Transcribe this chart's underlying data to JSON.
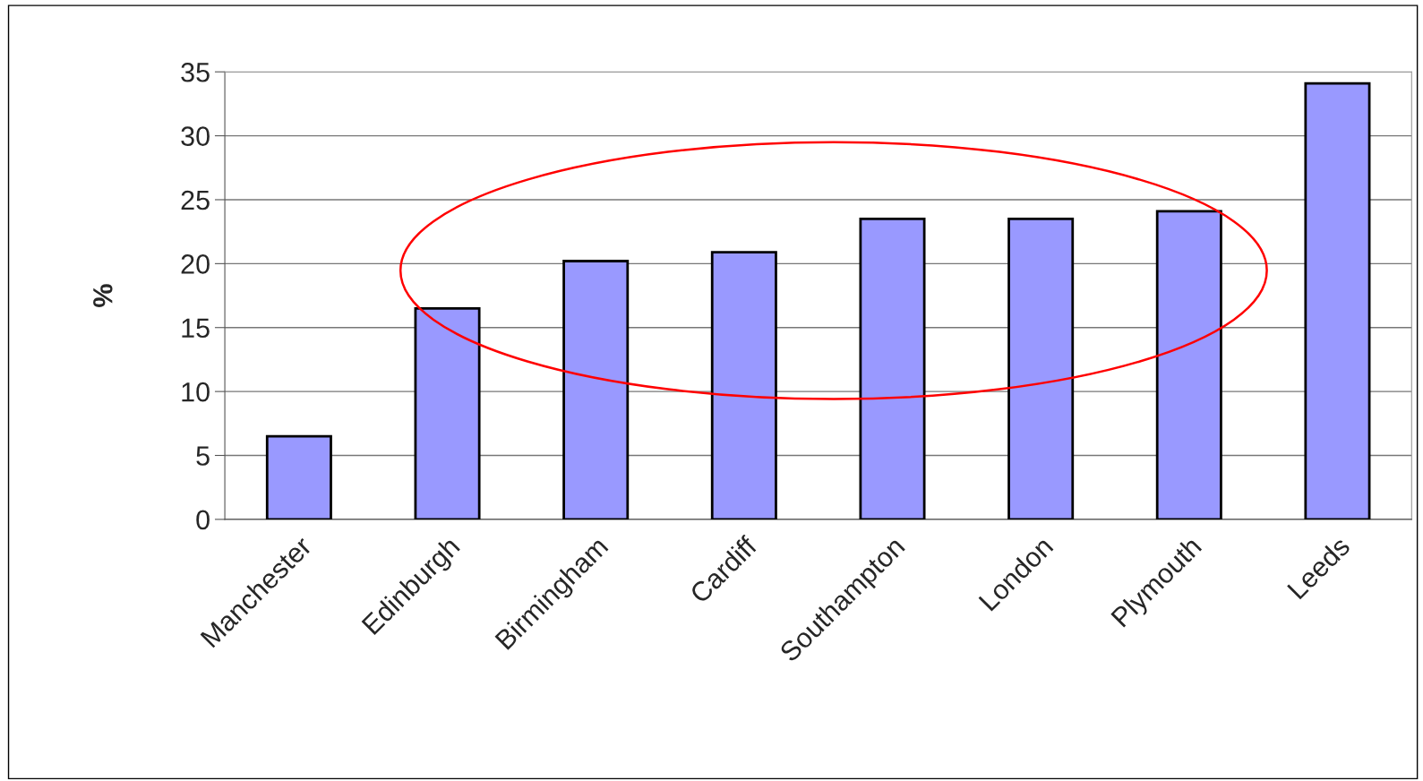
{
  "chart_data": {
    "type": "bar",
    "ylabel": "%",
    "categories": [
      "Manchester",
      "Edinburgh",
      "Birmingham",
      "Cardiff",
      "Southampton",
      "London",
      "Plymouth",
      "Leeds"
    ],
    "values": [
      6.5,
      16.5,
      20.2,
      20.9,
      23.5,
      23.5,
      24.1,
      34.1
    ],
    "color": "#9999ff",
    "ylim": [
      0,
      35
    ],
    "yticks": [
      0,
      5,
      10,
      15,
      20,
      25,
      30,
      35
    ],
    "grid": "y"
  }
}
